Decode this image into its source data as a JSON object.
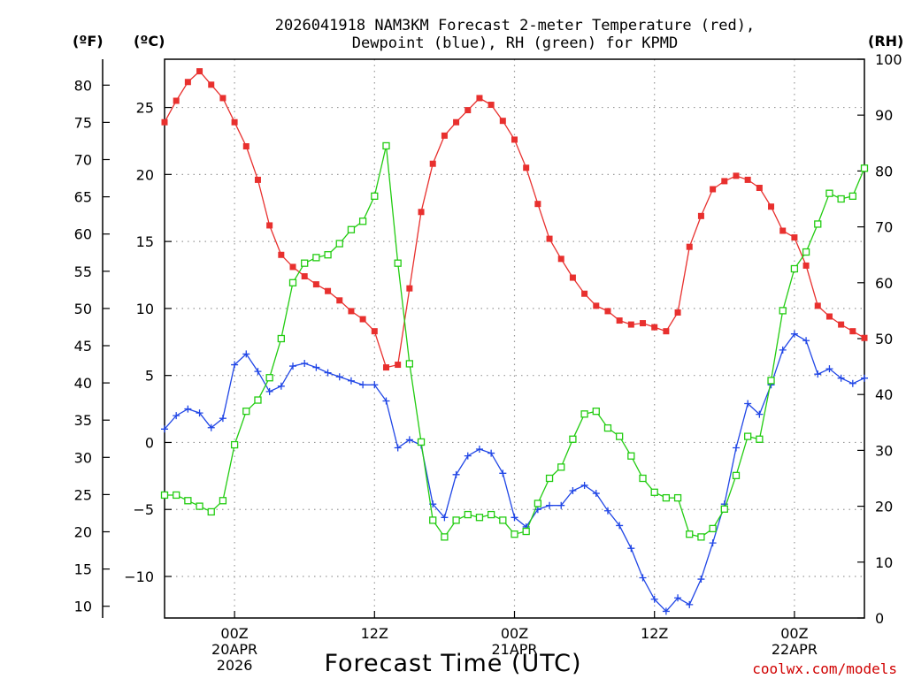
{
  "chart_data": {
    "type": "line",
    "title": [
      "2026041918 NAM3KM Forecast 2-meter Temperature (red),",
      "Dewpoint (blue), RH (green) for KPMD"
    ],
    "xlabel": "Forecast Time (UTC)",
    "credit": "coolwx.com/models",
    "units": {
      "fahrenheit": "(ºF)",
      "celsius": "(ºC)",
      "rh": "(RH)"
    },
    "x_start_hour": 18,
    "x_end_hour": 78,
    "x_ticks": [
      {
        "hour": 24,
        "lines": [
          "00Z",
          "20APR",
          "2026"
        ]
      },
      {
        "hour": 36,
        "lines": [
          "12Z"
        ]
      },
      {
        "hour": 48,
        "lines": [
          "00Z",
          "21APR"
        ]
      },
      {
        "hour": 60,
        "lines": [
          "12Z"
        ]
      },
      {
        "hour": 72,
        "lines": [
          "00Z",
          "22APR"
        ]
      }
    ],
    "celsius_axis": {
      "range": [
        -13.1,
        28.6
      ],
      "ticks": [
        -10,
        -5,
        0,
        5,
        10,
        15,
        20,
        25
      ]
    },
    "fahrenheit_ticks": [
      10,
      15,
      20,
      25,
      30,
      35,
      40,
      45,
      50,
      55,
      60,
      65,
      70,
      75,
      80
    ],
    "rh_axis": {
      "range": [
        0,
        100
      ],
      "ticks": [
        0,
        10,
        20,
        30,
        40,
        50,
        60,
        70,
        80,
        90,
        100
      ]
    },
    "series": [
      {
        "name": "Temperature (°C)",
        "color": "#e8302e",
        "marker": "filled-square",
        "axis": "celsius",
        "values": [
          23.9,
          25.5,
          26.9,
          27.7,
          26.7,
          25.7,
          23.9,
          22.1,
          19.6,
          16.2,
          14.0,
          13.1,
          12.4,
          11.8,
          11.3,
          10.6,
          9.8,
          9.2,
          8.3,
          5.6,
          5.8,
          11.5,
          17.2,
          20.8,
          22.9,
          23.9,
          24.8,
          25.7,
          25.2,
          24.0,
          22.6,
          20.5,
          17.8,
          15.2,
          13.7,
          12.3,
          11.1,
          10.2,
          9.8,
          9.1,
          8.8,
          8.9,
          8.6,
          8.3,
          9.7,
          14.6,
          16.9,
          18.9,
          19.5,
          19.9,
          19.6,
          19.0,
          17.6,
          15.8,
          15.3,
          13.2,
          10.2,
          9.4,
          8.8,
          8.3,
          7.8
        ]
      },
      {
        "name": "Dewpoint (°C)",
        "color": "#2046e6",
        "marker": "plus",
        "axis": "celsius",
        "values": [
          1.0,
          2.0,
          2.5,
          2.2,
          1.1,
          1.8,
          5.8,
          6.6,
          5.3,
          3.8,
          4.2,
          5.7,
          5.9,
          5.6,
          5.2,
          4.9,
          4.6,
          4.3,
          4.3,
          3.1,
          -0.4,
          0.2,
          -0.2,
          -4.6,
          -5.6,
          -2.4,
          -1.0,
          -0.5,
          -0.8,
          -2.3,
          -5.6,
          -6.3,
          -5.0,
          -4.7,
          -4.7,
          -3.6,
          -3.2,
          -3.8,
          -5.1,
          -6.2,
          -7.9,
          -10.1,
          -11.7,
          -12.6,
          -11.6,
          -12.1,
          -10.2,
          -7.5,
          -4.6,
          -0.4,
          2.9,
          2.1,
          4.3,
          6.9,
          8.1,
          7.6,
          5.1,
          5.5,
          4.8,
          4.4,
          4.8
        ]
      },
      {
        "name": "RH (%)",
        "color": "#22cc11",
        "marker": "open-square",
        "axis": "rh",
        "values": [
          22.0,
          22.0,
          21.0,
          20.0,
          19.0,
          21.0,
          31.0,
          37.0,
          39.0,
          43.0,
          50.0,
          60.0,
          63.5,
          64.5,
          65.0,
          67.0,
          69.5,
          71.0,
          75.5,
          84.5,
          63.5,
          45.5,
          31.5,
          17.5,
          14.5,
          17.5,
          18.5,
          18.0,
          18.5,
          17.5,
          15.0,
          15.5,
          20.5,
          25.0,
          27.0,
          32.0,
          36.5,
          37.0,
          34.0,
          32.5,
          29.0,
          25.0,
          22.5,
          21.5,
          21.5,
          15.0,
          14.5,
          16.0,
          19.5,
          25.5,
          32.5,
          32.0,
          42.5,
          55.0,
          62.5,
          65.5,
          70.5,
          76.0,
          75.0,
          75.5,
          80.5
        ]
      }
    ]
  }
}
